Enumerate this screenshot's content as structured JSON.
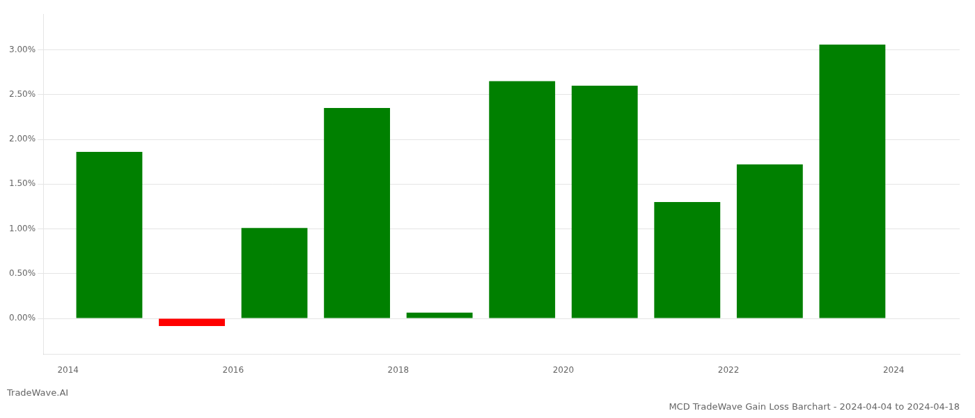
{
  "chart_data": {
    "type": "bar",
    "title": "MCD TradeWave Gain Loss Barchart - 2024-04-04 to 2024-04-18",
    "annotations": [
      "TradeWave.AI"
    ],
    "x": [
      2014.5,
      2015.5,
      2016.5,
      2017.5,
      2018.5,
      2019.5,
      2020.5,
      2021.5,
      2022.5,
      2023.5
    ],
    "values": [
      0.0186,
      -0.00085,
      0.0101,
      0.0235,
      0.00065,
      0.0265,
      0.026,
      0.013,
      0.0172,
      0.0306
    ],
    "colors": [
      "#008000",
      "#ff0000",
      "#008000",
      "#008000",
      "#008000",
      "#008000",
      "#008000",
      "#008000",
      "#008000",
      "#008000"
    ],
    "xlim": [
      2013.7,
      2024.8
    ],
    "xticks": [
      2014,
      2016,
      2018,
      2020,
      2022,
      2024
    ],
    "ylim": [
      -0.004,
      0.034
    ],
    "yticks": [
      {
        "value": 0.0,
        "label": "0.00%"
      },
      {
        "value": 0.005,
        "label": "0.50%"
      },
      {
        "value": 0.01,
        "label": "1.00%"
      },
      {
        "value": 0.015,
        "label": "1.50%"
      },
      {
        "value": 0.02,
        "label": "2.00%"
      },
      {
        "value": 0.025,
        "label": "2.50%"
      },
      {
        "value": 0.03,
        "label": "3.00%"
      }
    ],
    "grid": true
  }
}
